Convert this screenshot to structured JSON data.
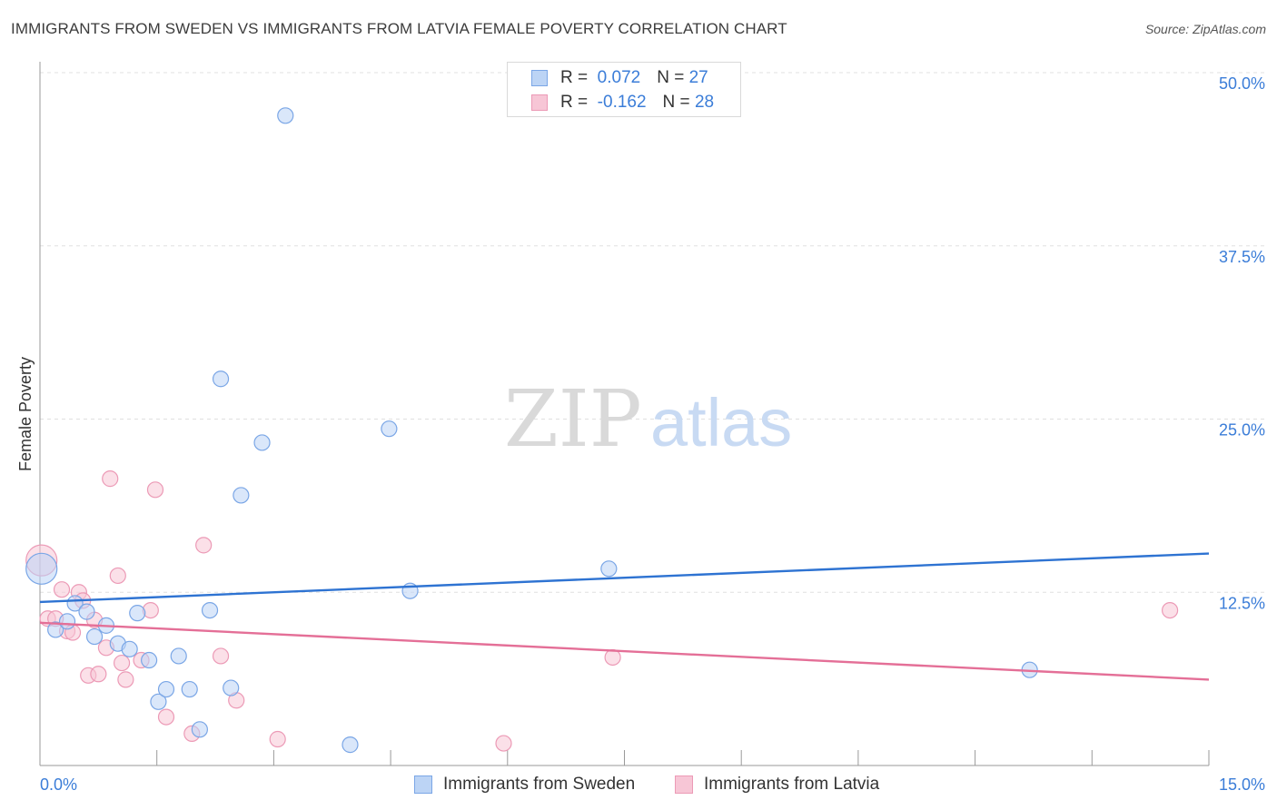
{
  "header": {
    "title": "IMMIGRANTS FROM SWEDEN VS IMMIGRANTS FROM LATVIA FEMALE POVERTY CORRELATION CHART",
    "source": "Source: ZipAtlas.com"
  },
  "watermark": {
    "zip": "ZIP",
    "atlas": "atlas"
  },
  "legend": {
    "items": [
      {
        "r_label": "R =",
        "r_value": "0.072",
        "n_label": "N =",
        "n_value": "27"
      },
      {
        "r_label": "R =",
        "r_value": "-0.162",
        "n_label": "N =",
        "n_value": "28"
      }
    ]
  },
  "bottom_legend": {
    "sweden": "Immigrants from Sweden",
    "latvia": "Immigrants from Latvia"
  },
  "colors": {
    "sweden_fill": "#bcd4f5",
    "sweden_stroke": "#7aa6e6",
    "sweden_line": "#2e73d2",
    "latvia_fill": "#f7c6d6",
    "latvia_stroke": "#ec9ab6",
    "latvia_line": "#e46f97",
    "tick_label": "#3b7dd8",
    "grid": "#e0e0e0"
  },
  "chart_data": {
    "type": "scatter",
    "title": "IMMIGRANTS FROM SWEDEN VS IMMIGRANTS FROM LATVIA FEMALE POVERTY CORRELATION CHART",
    "xlabel": "",
    "ylabel": "Female Poverty",
    "xlim": [
      0,
      15
    ],
    "ylim": [
      0,
      50
    ],
    "x_tick_labels": [
      {
        "value": 0,
        "label": "0.0%"
      },
      {
        "value": 15,
        "label": "15.0%"
      }
    ],
    "y_tick_labels": [
      {
        "value": 12.5,
        "label": "12.5%"
      },
      {
        "value": 25,
        "label": "25.0%"
      },
      {
        "value": 37.5,
        "label": "37.5%"
      },
      {
        "value": 50,
        "label": "50.0%"
      }
    ],
    "y_gridlines": [
      12.5,
      25,
      37.5,
      50
    ],
    "series": [
      {
        "name": "Immigrants from Sweden",
        "R": 0.072,
        "N": 27,
        "trend": {
          "x": [
            0,
            15
          ],
          "y": [
            11.8,
            15.3
          ]
        },
        "points": [
          {
            "x": 0.02,
            "y": 14.2,
            "big": true
          },
          {
            "x": 0.2,
            "y": 9.8
          },
          {
            "x": 0.35,
            "y": 10.4
          },
          {
            "x": 0.45,
            "y": 11.7
          },
          {
            "x": 0.6,
            "y": 11.1
          },
          {
            "x": 0.7,
            "y": 9.3
          },
          {
            "x": 0.85,
            "y": 10.1
          },
          {
            "x": 1.0,
            "y": 8.8
          },
          {
            "x": 1.15,
            "y": 8.4
          },
          {
            "x": 1.25,
            "y": 11.0
          },
          {
            "x": 1.4,
            "y": 7.6
          },
          {
            "x": 1.52,
            "y": 4.6
          },
          {
            "x": 1.62,
            "y": 5.5
          },
          {
            "x": 1.78,
            "y": 7.9
          },
          {
            "x": 1.92,
            "y": 5.5
          },
          {
            "x": 2.05,
            "y": 2.6
          },
          {
            "x": 2.18,
            "y": 11.2
          },
          {
            "x": 2.32,
            "y": 27.9
          },
          {
            "x": 2.45,
            "y": 5.6
          },
          {
            "x": 2.58,
            "y": 19.5
          },
          {
            "x": 2.85,
            "y": 23.3
          },
          {
            "x": 3.15,
            "y": 46.9
          },
          {
            "x": 3.98,
            "y": 1.5
          },
          {
            "x": 4.48,
            "y": 24.3
          },
          {
            "x": 4.75,
            "y": 12.6
          },
          {
            "x": 7.3,
            "y": 14.2
          },
          {
            "x": 12.7,
            "y": 6.9
          }
        ]
      },
      {
        "name": "Immigrants from Latvia",
        "R": -0.162,
        "N": 28,
        "trend": {
          "x": [
            0,
            15
          ],
          "y": [
            10.3,
            6.2
          ]
        },
        "points": [
          {
            "x": 0.02,
            "y": 14.8,
            "big": true
          },
          {
            "x": 0.1,
            "y": 10.6
          },
          {
            "x": 0.2,
            "y": 10.6
          },
          {
            "x": 0.28,
            "y": 12.7
          },
          {
            "x": 0.35,
            "y": 9.7
          },
          {
            "x": 0.42,
            "y": 9.6
          },
          {
            "x": 0.5,
            "y": 12.5
          },
          {
            "x": 0.55,
            "y": 11.9
          },
          {
            "x": 0.62,
            "y": 6.5
          },
          {
            "x": 0.75,
            "y": 6.6
          },
          {
            "x": 0.7,
            "y": 10.5
          },
          {
            "x": 0.85,
            "y": 8.5
          },
          {
            "x": 0.9,
            "y": 20.7
          },
          {
            "x": 1.0,
            "y": 13.7
          },
          {
            "x": 1.05,
            "y": 7.4
          },
          {
            "x": 1.1,
            "y": 6.2
          },
          {
            "x": 1.3,
            "y": 7.6
          },
          {
            "x": 1.42,
            "y": 11.2
          },
          {
            "x": 1.48,
            "y": 19.9
          },
          {
            "x": 1.62,
            "y": 3.5
          },
          {
            "x": 1.95,
            "y": 2.3
          },
          {
            "x": 2.1,
            "y": 15.9
          },
          {
            "x": 2.32,
            "y": 7.9
          },
          {
            "x": 2.52,
            "y": 4.7
          },
          {
            "x": 3.05,
            "y": 1.9
          },
          {
            "x": 5.95,
            "y": 1.6
          },
          {
            "x": 7.35,
            "y": 7.8
          },
          {
            "x": 14.5,
            "y": 11.2
          }
        ]
      }
    ]
  }
}
